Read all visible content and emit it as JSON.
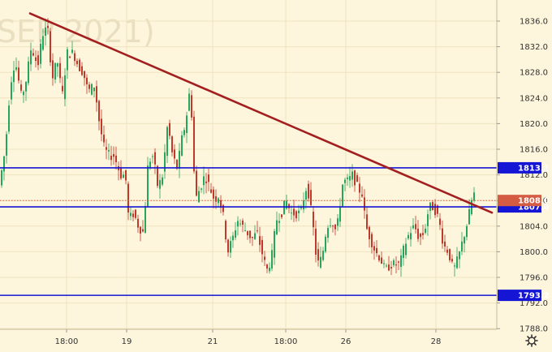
{
  "watermark": "SEP 2021)",
  "settings_icon": "gear-icon",
  "colors": {
    "background": "#fdf5dc",
    "grid": "#efe3bf",
    "bull": "#26a65b",
    "bear": "#c0392b",
    "trendline": "#a31f1f",
    "level": "#1515d6",
    "price_line": "#d35c42"
  },
  "chart_data": {
    "type": "candlestick",
    "ylim": [
      1786,
      1838
    ],
    "yticks": [
      "1836.0",
      "1832.0",
      "1828.0",
      "1824.0",
      "1820.0",
      "1816.0",
      "1812.0",
      "1808.0",
      "1804.0",
      "1800.0",
      "1796.0",
      "1792.0",
      "1788.0"
    ],
    "xticks": [
      "18:00",
      "19",
      "21",
      "18:00",
      "26",
      "28"
    ],
    "levels": [
      {
        "label": "1813.1",
        "value": 1813.1
      },
      {
        "label": "1807.0",
        "value": 1807.0
      },
      {
        "label": "1793.2",
        "value": 1793.2
      }
    ],
    "last_price": {
      "label": "1808.0",
      "value": 1808.0
    },
    "trendline": {
      "start": [
        0.0,
        1837.2
      ],
      "end": [
        1.0,
        1806.1
      ]
    },
    "grid": true
  }
}
